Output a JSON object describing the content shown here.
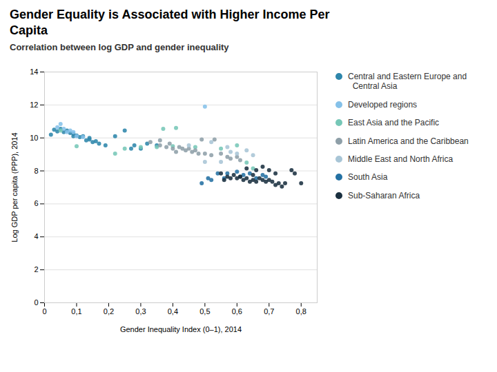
{
  "chart_data": {
    "type": "scatter",
    "title": "Gender Equality is Associated with Higher Income Per\nCapita",
    "subtitle": "Correlation between log GDP and gender inequality",
    "xlabel": "Gender Inequality Index (0–1), 2014",
    "ylabel": "Log GDP per capita (PPP), 2014",
    "xlim": [
      0,
      0.85
    ],
    "ylim": [
      0,
      14
    ],
    "xticks": [
      0,
      {
        "value": 0.1,
        "label": "0,1"
      },
      {
        "value": 0.2,
        "label": "0,2"
      },
      {
        "value": 0.3,
        "label": "0,3"
      },
      {
        "value": 0.4,
        "label": "0,4"
      },
      {
        "value": 0.5,
        "label": "0,5"
      },
      {
        "value": 0.6,
        "label": "0,6"
      },
      {
        "value": 0.7,
        "label": "0,7"
      },
      {
        "value": 0.8,
        "label": "0,8"
      }
    ],
    "yticks": [
      0,
      2,
      4,
      6,
      8,
      10,
      12,
      14
    ],
    "grid": "y",
    "series": [
      {
        "name": "Central and Eastern Europe and\n  Central Asia",
        "color": "#2E86AB",
        "x": [
          0.02,
          0.03,
          0.04,
          0.05,
          0.06,
          0.07,
          0.08,
          0.09,
          0.09,
          0.1,
          0.11,
          0.12,
          0.13,
          0.14,
          0.14,
          0.15,
          0.16,
          0.17,
          0.19,
          0.22,
          0.25,
          0.27,
          0.28,
          0.3,
          0.32,
          0.35
        ],
        "values": [
          10.2,
          10.5,
          10.4,
          10.55,
          10.35,
          10.45,
          10.3,
          10.25,
          10.1,
          10.15,
          10.05,
          10.1,
          9.85,
          9.9,
          10.0,
          9.75,
          9.8,
          9.65,
          9.55,
          10.1,
          10.45,
          9.35,
          9.55,
          9.35,
          9.65,
          9.55
        ]
      },
      {
        "name": "Developed regions",
        "color": "#85C1E9",
        "x": [
          0.04,
          0.05,
          0.06,
          0.07,
          0.08,
          0.09,
          0.1,
          0.12,
          0.5
        ],
        "values": [
          10.65,
          10.85,
          10.55,
          10.35,
          10.45,
          10.35,
          10.1,
          10.05,
          11.9
        ]
      },
      {
        "name": "East Asia and the Pacific",
        "color": "#76C7B7",
        "x": [
          0.05,
          0.1,
          0.22,
          0.25,
          0.3,
          0.35,
          0.37,
          0.4,
          0.41,
          0.47,
          0.55,
          0.6,
          0.63,
          0.65
        ],
        "values": [
          10.45,
          9.5,
          9.05,
          9.35,
          9.45,
          9.45,
          10.55,
          9.5,
          10.6,
          9.45,
          9.35,
          9.55,
          8.5,
          8.15
        ]
      },
      {
        "name": "Latin America and the Caribbean",
        "color": "#8E9FA8",
        "x": [
          0.33,
          0.36,
          0.36,
          0.38,
          0.39,
          0.4,
          0.41,
          0.42,
          0.43,
          0.44,
          0.45,
          0.46,
          0.47,
          0.48,
          0.49,
          0.5,
          0.52,
          0.53,
          0.55,
          0.57,
          0.58,
          0.6,
          0.61
        ],
        "values": [
          9.75,
          9.55,
          9.85,
          9.45,
          9.65,
          9.35,
          9.15,
          9.45,
          9.35,
          9.25,
          9.35,
          9.15,
          9.25,
          9.05,
          9.9,
          9.05,
          8.95,
          9.9,
          9.05,
          8.85,
          8.75,
          8.85,
          8.65
        ]
      },
      {
        "name": "Middle East and North Africa",
        "color": "#A8C5D6",
        "x": [
          0.45,
          0.5,
          0.52,
          0.55,
          0.57,
          0.58,
          0.6,
          0.63,
          0.65
        ],
        "values": [
          9.55,
          8.55,
          9.75,
          8.55,
          9.45,
          9.15,
          9.05,
          9.25,
          8.95
        ]
      },
      {
        "name": "South Asia",
        "color": "#2471A3",
        "x": [
          0.49,
          0.51,
          0.52,
          0.54,
          0.56,
          0.57,
          0.6,
          0.62,
          0.64,
          0.66,
          0.68,
          0.69
        ],
        "values": [
          7.25,
          7.55,
          7.45,
          7.85,
          7.55,
          7.85,
          7.95,
          7.75,
          7.85,
          7.55,
          7.75,
          7.65
        ]
      },
      {
        "name": "Sub-Saharan Africa",
        "color": "#1A3040",
        "x": [
          0.55,
          0.57,
          0.59,
          0.6,
          0.61,
          0.62,
          0.63,
          0.64,
          0.65,
          0.65,
          0.66,
          0.67,
          0.68,
          0.69,
          0.7,
          0.71,
          0.72,
          0.73,
          0.74,
          0.75,
          0.63,
          0.66,
          0.68,
          0.7,
          0.72,
          0.56,
          0.58,
          0.61,
          0.77,
          0.78,
          0.8
        ],
        "values": [
          7.85,
          7.65,
          7.75,
          7.55,
          7.65,
          7.45,
          7.55,
          7.35,
          7.45,
          7.75,
          7.35,
          7.55,
          7.45,
          7.35,
          7.45,
          7.35,
          7.15,
          7.25,
          7.05,
          7.25,
          8.15,
          8.05,
          8.25,
          8.05,
          7.85,
          7.45,
          7.55,
          7.65,
          8.05,
          7.85,
          7.25
        ]
      }
    ]
  }
}
